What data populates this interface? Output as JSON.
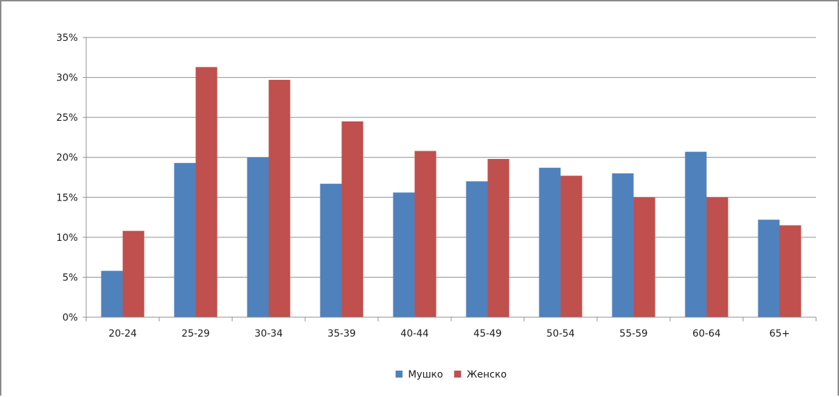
{
  "chart_data": {
    "type": "bar",
    "categories": [
      "20-24",
      "25-29",
      "30-34",
      "35-39",
      "40-44",
      "45-49",
      "50-54",
      "55-59",
      "60-64",
      "65+"
    ],
    "series": [
      {
        "name": "Мушко",
        "color": "#4f81bd",
        "values": [
          5.8,
          19.3,
          20.0,
          16.7,
          15.6,
          17.0,
          18.7,
          18.0,
          20.7,
          12.2
        ]
      },
      {
        "name": "Женско",
        "color": "#c0504d",
        "values": [
          10.8,
          31.3,
          29.7,
          24.5,
          20.8,
          19.8,
          17.7,
          15.0,
          15.0,
          11.5
        ]
      }
    ],
    "y_ticks": [
      "0%",
      "5%",
      "10%",
      "15%",
      "20%",
      "25%",
      "30%",
      "35%"
    ],
    "ylim": [
      0,
      35
    ],
    "y_unit": "%",
    "grid": true,
    "legend_position": "bottom"
  }
}
